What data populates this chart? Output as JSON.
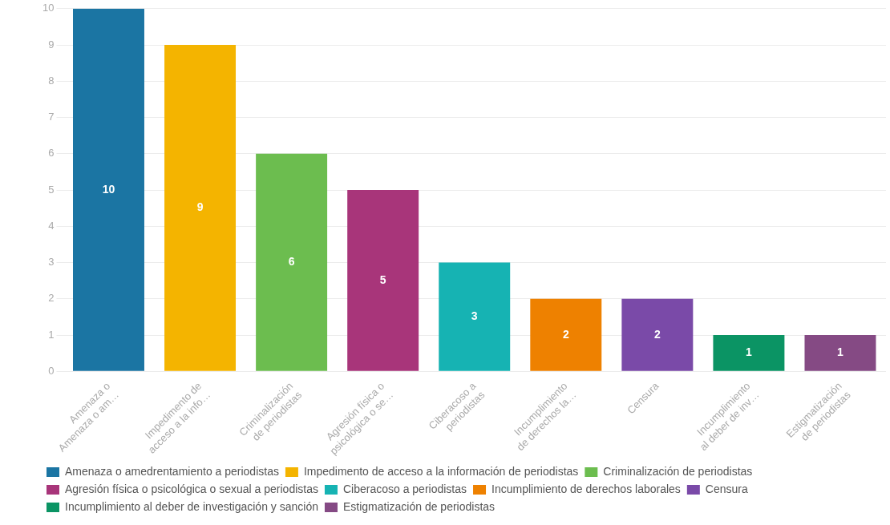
{
  "chart_data": {
    "type": "bar",
    "categories": [
      "Amenaza o\nAmenaza o am…",
      "Impedimento de\nacceso a la info…",
      "Criminalización\nde periodistas",
      "Agresión física o\npsicológica o se…",
      "Ciberacoso a\nperiodistas",
      "Incumplimiento\nde derechos la…",
      "Censura",
      "Incumplimiento\nal deber de inv…",
      "Estigmatización\nde periodistas"
    ],
    "series": [
      {
        "name": "Amenaza o amedrentamiento a periodistas",
        "color": "#1b75a3",
        "values": [
          10,
          null,
          null,
          null,
          null,
          null,
          null,
          null,
          null
        ]
      },
      {
        "name": "Impedimento de acceso a la información de periodistas",
        "color": "#f4b400",
        "values": [
          null,
          9,
          null,
          null,
          null,
          null,
          null,
          null,
          null
        ]
      },
      {
        "name": "Criminalización de periodistas",
        "color": "#6cbd4f",
        "values": [
          null,
          null,
          6,
          null,
          null,
          null,
          null,
          null,
          null
        ]
      },
      {
        "name": "Agresión física o psicológica o sexual a periodistas",
        "color": "#a8357a",
        "values": [
          null,
          null,
          null,
          5,
          null,
          null,
          null,
          null,
          null
        ]
      },
      {
        "name": "Ciberacoso a periodistas",
        "color": "#16b3b3",
        "values": [
          null,
          null,
          null,
          null,
          3,
          null,
          null,
          null,
          null
        ]
      },
      {
        "name": "Incumplimiento de derechos laborales",
        "color": "#ee8100",
        "values": [
          null,
          null,
          null,
          null,
          null,
          2,
          null,
          null,
          null
        ]
      },
      {
        "name": "Censura",
        "color": "#7a4aa8",
        "values": [
          null,
          null,
          null,
          null,
          null,
          null,
          2,
          null,
          null
        ]
      },
      {
        "name": "Incumplimiento al deber de investigación y sanción",
        "color": "#0b9464",
        "values": [
          null,
          null,
          null,
          null,
          null,
          null,
          null,
          1,
          null
        ]
      },
      {
        "name": "Estigmatización de periodistas",
        "color": "#854a84",
        "values": [
          null,
          null,
          null,
          null,
          null,
          null,
          null,
          null,
          1
        ]
      }
    ],
    "ylim": [
      0,
      10
    ],
    "yticks": [
      0,
      1,
      2,
      3,
      4,
      5,
      6,
      7,
      8,
      9,
      10
    ],
    "grid": "y",
    "legend": "bottom",
    "data_labels": true
  }
}
